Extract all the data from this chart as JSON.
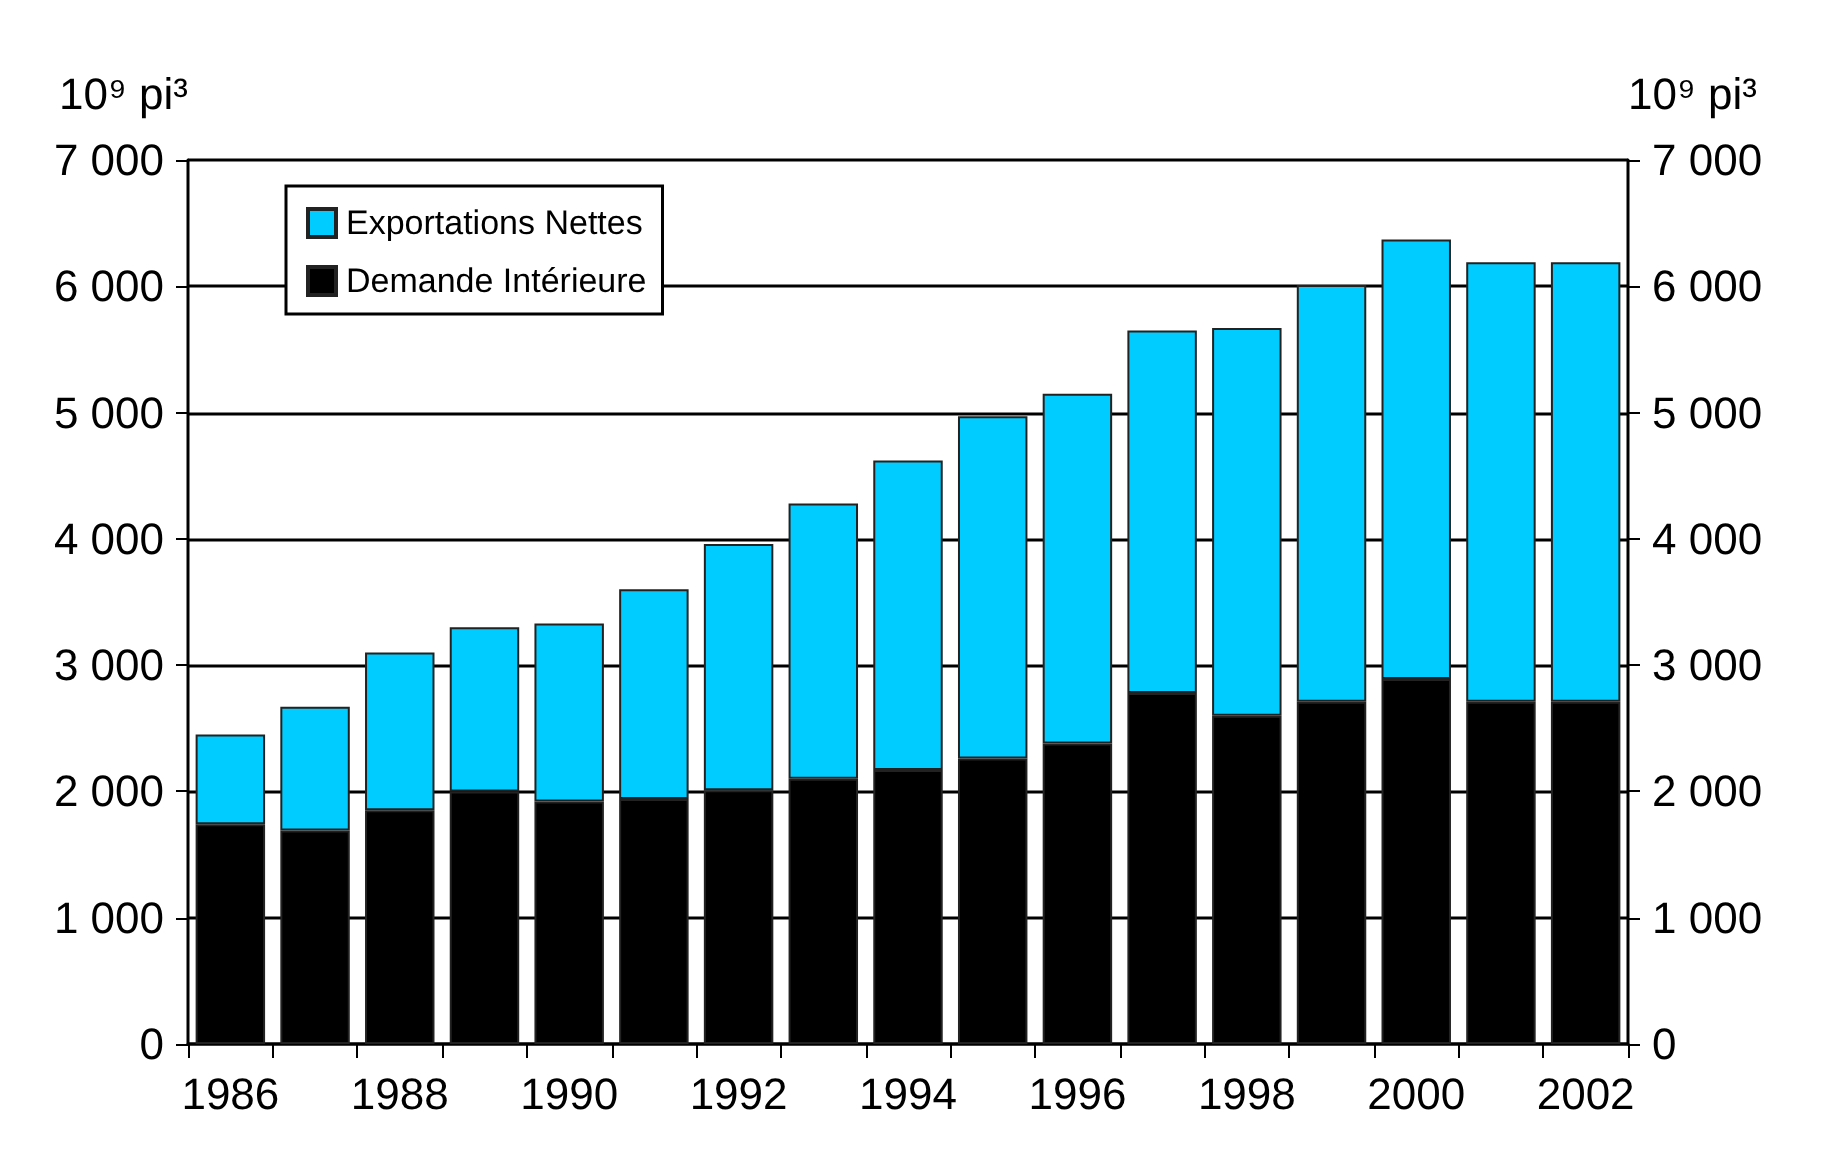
{
  "chart_data": {
    "type": "bar",
    "stacked": true,
    "ylabel": "10⁹ pi³",
    "y2label": "10⁹ pi³",
    "categories": [
      "1986",
      null,
      "1988",
      null,
      "1990",
      null,
      "1992",
      null,
      "1994",
      null,
      "1996",
      null,
      "1998",
      null,
      "2000",
      null,
      "2002"
    ],
    "series": [
      {
        "name": "Demande Intérieure",
        "color": "#000000",
        "values": [
          1740,
          1690,
          1850,
          2000,
          1920,
          1940,
          2010,
          2100,
          2170,
          2260,
          2380,
          2780,
          2600,
          2710,
          2890,
          2710,
          2710
        ]
      },
      {
        "name": "Exportations Nettes",
        "color": "#00ccff",
        "values": [
          710,
          980,
          1250,
          1300,
          1410,
          1660,
          1950,
          2180,
          2450,
          2710,
          2770,
          2870,
          3070,
          3300,
          3480,
          3480,
          3480
        ]
      }
    ],
    "ylim": [
      0,
      7000
    ],
    "yticks": [
      0,
      {
        "value": 1000,
        "label": "1 000"
      },
      {
        "value": 2000,
        "label": "2 000"
      },
      {
        "value": 3000,
        "label": "3 000"
      },
      {
        "value": 4000,
        "label": "4 000"
      },
      {
        "value": 5000,
        "label": "5 000"
      },
      {
        "value": 6000,
        "label": "6 000"
      },
      {
        "value": 7000,
        "label": "7 000"
      }
    ],
    "y2lim": [
      0,
      7000
    ],
    "y2ticks": [
      0,
      {
        "value": 1000,
        "label": "1 000"
      },
      {
        "value": 2000,
        "label": "2 000"
      },
      {
        "value": 3000,
        "label": "3 000"
      },
      {
        "value": 4000,
        "label": "4 000"
      },
      {
        "value": 5000,
        "label": "5 000"
      },
      {
        "value": 6000,
        "label": "6 000"
      },
      {
        "value": 7000,
        "label": "7 000"
      }
    ],
    "grid": "y",
    "legend": "top left"
  }
}
